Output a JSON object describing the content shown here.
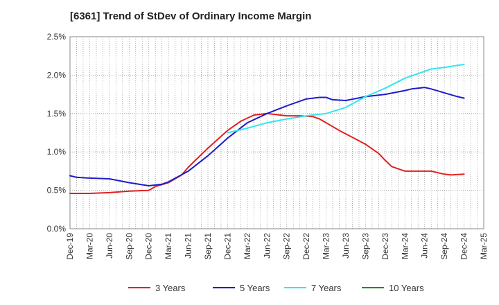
{
  "chart_data": {
    "type": "line",
    "title": "[6361]  Trend of StDev of Ordinary Income Margin",
    "xlabel": "",
    "ylabel": "",
    "ylim": [
      0,
      2.5
    ],
    "yticks": [
      0,
      0.5,
      1.0,
      1.5,
      2.0,
      2.5
    ],
    "ytick_labels": [
      "0.0%",
      "0.5%",
      "1.0%",
      "1.5%",
      "2.0%",
      "2.5%"
    ],
    "x_tick_labels": [
      "Dec-19",
      "Mar-20",
      "Jun-20",
      "Sep-20",
      "Dec-20",
      "Mar-21",
      "Jun-21",
      "Sep-21",
      "Dec-21",
      "Mar-22",
      "Jun-22",
      "Sep-22",
      "Dec-22",
      "Mar-23",
      "Jun-23",
      "Sep-23",
      "Dec-23",
      "Mar-24",
      "Jun-24",
      "Sep-24",
      "Dec-24",
      "Mar-25"
    ],
    "x_range_months": [
      "Dec-19",
      "Mar-25"
    ],
    "grid": true,
    "legend_position": "bottom",
    "series": [
      {
        "name": "3 Years",
        "color": "#e02020",
        "x": [
          "Dec-19",
          "Mar-20",
          "Jun-20",
          "Sep-20",
          "Dec-20",
          "Jan-21",
          "Mar-21",
          "May-21",
          "Jun-21",
          "Sep-21",
          "Dec-21",
          "Feb-22",
          "Apr-22",
          "Jun-22",
          "Sep-22",
          "Nov-22",
          "Jan-23",
          "Feb-23",
          "Mar-23",
          "May-23",
          "Jul-23",
          "Sep-23",
          "Oct-23",
          "Nov-23",
          "Dec-23",
          "Jan-24",
          "Mar-24",
          "May-24",
          "Jul-24",
          "Sep-24",
          "Oct-24",
          "Dec-24"
        ],
        "values": [
          0.46,
          0.46,
          0.47,
          0.49,
          0.5,
          0.55,
          0.6,
          0.7,
          0.8,
          1.05,
          1.28,
          1.4,
          1.48,
          1.5,
          1.47,
          1.47,
          1.46,
          1.43,
          1.38,
          1.28,
          1.19,
          1.1,
          1.04,
          0.98,
          0.89,
          0.81,
          0.75,
          0.75,
          0.75,
          0.71,
          0.7,
          0.71
        ]
      },
      {
        "name": "5 Years",
        "color": "#1c1cc8",
        "x": [
          "Dec-19",
          "Jan-20",
          "Mar-20",
          "Jun-20",
          "Sep-20",
          "Dec-20",
          "Feb-21",
          "Mar-21",
          "Jun-21",
          "Sep-21",
          "Dec-21",
          "Mar-22",
          "Jun-22",
          "Sep-22",
          "Dec-22",
          "Feb-23",
          "Mar-23",
          "Apr-23",
          "Jun-23",
          "Sep-23",
          "Dec-23",
          "Mar-24",
          "Apr-24",
          "May-24",
          "Jun-24",
          "Jul-24",
          "Sep-24",
          "Nov-24",
          "Dec-24"
        ],
        "values": [
          0.69,
          0.67,
          0.66,
          0.65,
          0.6,
          0.56,
          0.58,
          0.61,
          0.75,
          0.95,
          1.18,
          1.38,
          1.5,
          1.6,
          1.69,
          1.71,
          1.71,
          1.68,
          1.67,
          1.72,
          1.75,
          1.8,
          1.82,
          1.83,
          1.84,
          1.82,
          1.77,
          1.72,
          1.7
        ]
      },
      {
        "name": "7 Years",
        "color": "#33e6ee",
        "x": [
          "Dec-21",
          "Mar-22",
          "Jun-22",
          "Sep-22",
          "Dec-22",
          "Mar-23",
          "Jun-23",
          "Sep-23",
          "Dec-23",
          "Mar-24",
          "Jun-24",
          "Jul-24",
          "Sep-24",
          "Dec-24"
        ],
        "values": [
          1.25,
          1.31,
          1.38,
          1.43,
          1.47,
          1.5,
          1.58,
          1.72,
          1.83,
          1.96,
          2.05,
          2.08,
          2.1,
          2.14
        ]
      },
      {
        "name": "10 Years",
        "color": "#228822",
        "x": [],
        "values": []
      }
    ]
  }
}
